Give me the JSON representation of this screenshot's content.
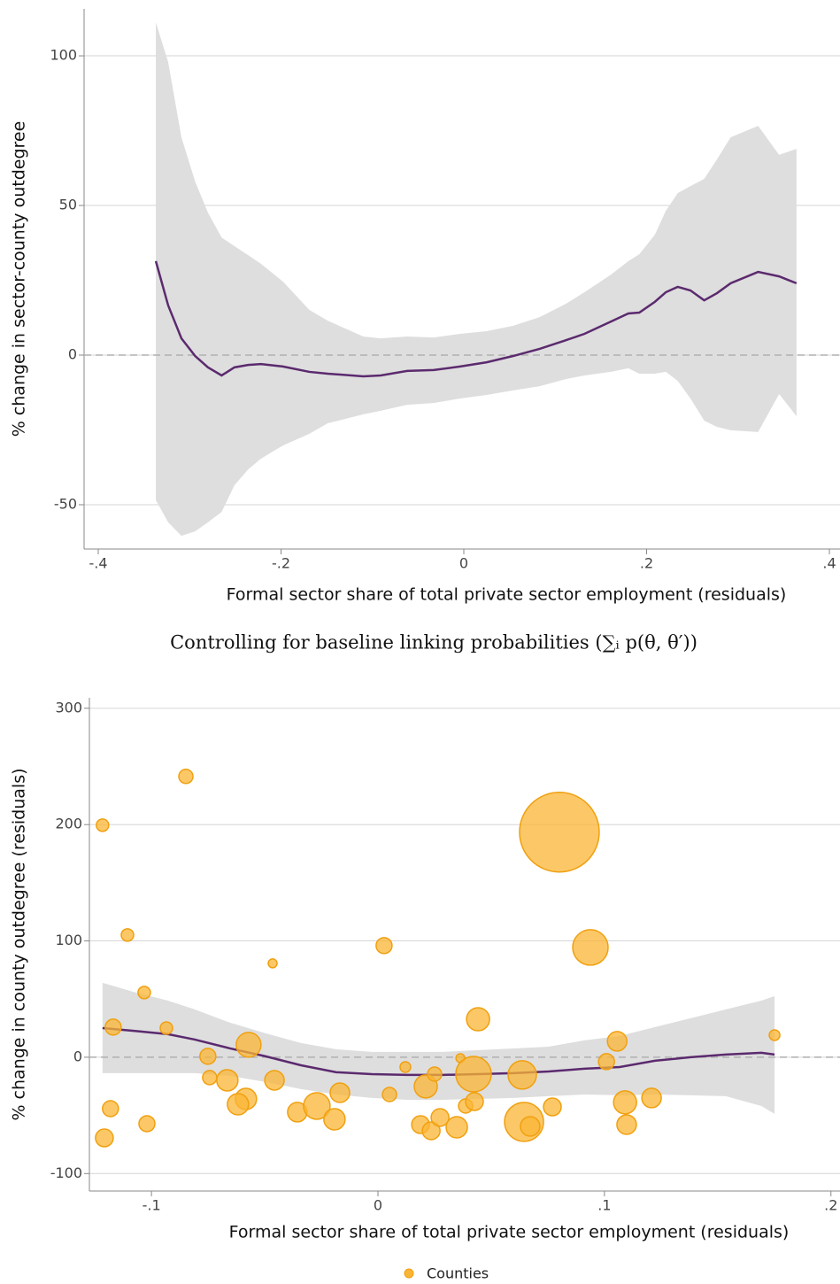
{
  "chart_data": [
    {
      "type": "line",
      "x_label": "Formal sector share of total private sector employment (residuals)",
      "y_label": "% change in sector-county outdegree",
      "xlim": [
        -0.4155,
        0.4116
      ],
      "ylim": [
        -64.8,
        115.7
      ],
      "xticks": [
        {
          "value": -0.4,
          "label": "-.4"
        },
        {
          "value": -0.2,
          "label": "-.2"
        },
        0,
        {
          "value": 0.2,
          "label": ".2"
        },
        {
          "value": 0.4,
          "label": ".4"
        }
      ],
      "yticks": [
        -50,
        0,
        50,
        100
      ],
      "grid": true,
      "reference_line": 0,
      "color": "#5b2a6e",
      "band_color": "#dedede",
      "x": [
        -0.337,
        -0.3235,
        -0.309,
        -0.294,
        -0.28,
        -0.265,
        -0.251,
        -0.236,
        -0.222,
        -0.198,
        -0.169,
        -0.149,
        -0.11,
        -0.091,
        -0.062,
        -0.033,
        -0.004,
        0.025,
        0.054,
        0.083,
        0.112,
        0.132,
        0.161,
        0.18,
        0.192,
        0.209,
        0.221,
        0.234,
        0.248,
        0.263,
        0.277,
        0.292,
        0.322,
        0.345,
        0.364
      ],
      "values": [
        31.4,
        16.6,
        5.6,
        -0.3,
        -4.1,
        -6.8,
        -4.1,
        -3.3,
        -3.0,
        -3.8,
        -5.6,
        -6.2,
        -7.1,
        -6.8,
        -5.3,
        -5.0,
        -3.8,
        -2.4,
        -0.3,
        2.1,
        5.0,
        7.1,
        11.2,
        13.9,
        14.2,
        17.8,
        21.0,
        22.8,
        21.6,
        18.3,
        20.7,
        24.0,
        27.8,
        26.3,
        24.0
      ],
      "upper": [
        111.2,
        97.9,
        72.8,
        58,
        47.6,
        39.3,
        36.4,
        33.4,
        30.5,
        24.6,
        15.1,
        11.5,
        6.2,
        5.6,
        6.2,
        5.9,
        7.1,
        8.0,
        9.8,
        12.7,
        17.2,
        21.0,
        26.9,
        31.4,
        33.7,
        40.2,
        48.2,
        54.1,
        56.5,
        58.9,
        65.4,
        72.8,
        76.6,
        66.9,
        68.9
      ],
      "lower": [
        -48.5,
        -55.9,
        -60.4,
        -58.9,
        -55.9,
        -52.4,
        -43.5,
        -38.2,
        -34.6,
        -30.2,
        -26.3,
        -22.8,
        -19.8,
        -18.6,
        -16.6,
        -16.0,
        -14.5,
        -13.3,
        -11.8,
        -10.4,
        -8.0,
        -6.8,
        -5.6,
        -4.4,
        -6.2,
        -6.2,
        -5.6,
        -8.6,
        -14.5,
        -21.9,
        -24.0,
        -25.1,
        -25.7,
        -13.0,
        -20.4
      ]
    },
    {
      "type": "scatter",
      "x_label": "Formal sector share of total private sector employment (residuals)",
      "y_label": "% change in county outdegree (residuals)",
      "xlim": [
        -0.1274,
        0.204
      ],
      "ylim": [
        -115,
        309
      ],
      "xticks": [
        {
          "value": -0.1,
          "label": "-.1"
        },
        0,
        {
          "value": 0.1,
          "label": ".1"
        },
        {
          "value": 0.2,
          "label": ".2"
        }
      ],
      "yticks": [
        -100,
        0,
        100,
        200,
        300
      ],
      "grid": true,
      "reference_line": 0,
      "legend": "bottom",
      "series": [
        {
          "name": "Counties",
          "color": "#fbb534",
          "x": [
            -0.1216,
            -0.0848,
            -0.1106,
            -0.1032,
            -0.1169,
            -0.0934,
            -0.0751,
            -0.0743,
            -0.0665,
            -0.0571,
            -0.0583,
            -0.0618,
            -0.0457,
            -0.0465,
            -0.1181,
            -0.102,
            -0.1208,
            -0.0356,
            -0.027,
            -0.0192,
            -0.0168,
            0.0027,
            0.0051,
            0.0121,
            0.0211,
            0.0188,
            0.0235,
            0.025,
            0.0274,
            0.0348,
            0.0364,
            0.0387,
            0.0426,
            0.0422,
            0.0442,
            0.0637,
            0.0645,
            0.0672,
            0.077,
            0.0801,
            0.0938,
            0.1009,
            0.1056,
            0.1091,
            0.1098,
            0.1208,
            0.1751
          ],
          "values": [
            199.5,
            241.4,
            105.1,
            55.6,
            25.9,
            25.1,
            0.8,
            -17.5,
            -19.8,
            10.7,
            -35.8,
            -40.4,
            -19.8,
            80.7,
            -44.2,
            -57.1,
            -69.3,
            -47.2,
            -41.9,
            -53.3,
            -30.5,
            96.0,
            -32.0,
            -8.4,
            -25.1,
            -57.9,
            -63.2,
            -14.5,
            -51.8,
            -60.2,
            -0.8,
            -41.9,
            -38.1,
            -14.5,
            32.7,
            -15.2,
            -55.6,
            -59.4,
            -42.7,
            193.5,
            94.4,
            -3.8,
            13.7,
            -38.8,
            -57.9,
            -35.0,
            19.0
          ],
          "sizes": [
            7,
            8,
            7,
            7,
            9,
            7,
            9,
            8,
            12,
            14,
            12,
            12,
            11,
            5,
            9,
            9,
            10,
            11,
            15,
            12,
            11,
            9,
            8,
            6,
            13,
            10,
            10,
            8,
            10,
            12,
            5,
            8,
            10,
            20,
            13,
            16,
            22,
            11,
            10,
            45,
            20,
            9,
            11,
            13,
            11,
            11,
            6
          ]
        }
      ],
      "fit": {
        "color": "#5b2a6e",
        "band_color": "#dedede",
        "x": [
          -0.1216,
          -0.1083,
          -0.0927,
          -0.0809,
          -0.0653,
          -0.0496,
          -0.034,
          -0.0184,
          -0.0027,
          0.0129,
          0.0285,
          0.0442,
          0.0598,
          0.0754,
          0.0911,
          0.1067,
          0.1223,
          0.138,
          0.1536,
          0.1693,
          0.1751
        ],
        "values": [
          25.1,
          22.8,
          19.8,
          15.2,
          7.6,
          0.8,
          -6.9,
          -12.9,
          -14.5,
          -15.2,
          -15.2,
          -14.5,
          -13.7,
          -12.2,
          -9.9,
          -8.4,
          -3.0,
          0,
          2.3,
          3.8,
          2.3
        ],
        "upper": [
          64.0,
          56.4,
          48.7,
          41.1,
          29.7,
          20.6,
          12.2,
          6.9,
          4.6,
          4.6,
          4.6,
          6.1,
          7.6,
          9.1,
          14.5,
          18.3,
          25.9,
          33.5,
          41.1,
          48.7,
          52.6
        ],
        "lower": [
          -13.7,
          -13.7,
          -13.7,
          -13.7,
          -16.0,
          -21.3,
          -27.4,
          -32.0,
          -35.0,
          -36.6,
          -36.6,
          -35.8,
          -35.0,
          -33.5,
          -32.0,
          -32.7,
          -32.0,
          -32.7,
          -33.5,
          -41.9,
          -48.7
        ]
      }
    }
  ],
  "caption": "Controlling for baseline linking probabilities (∑ᵢ p(θ, θ′))"
}
